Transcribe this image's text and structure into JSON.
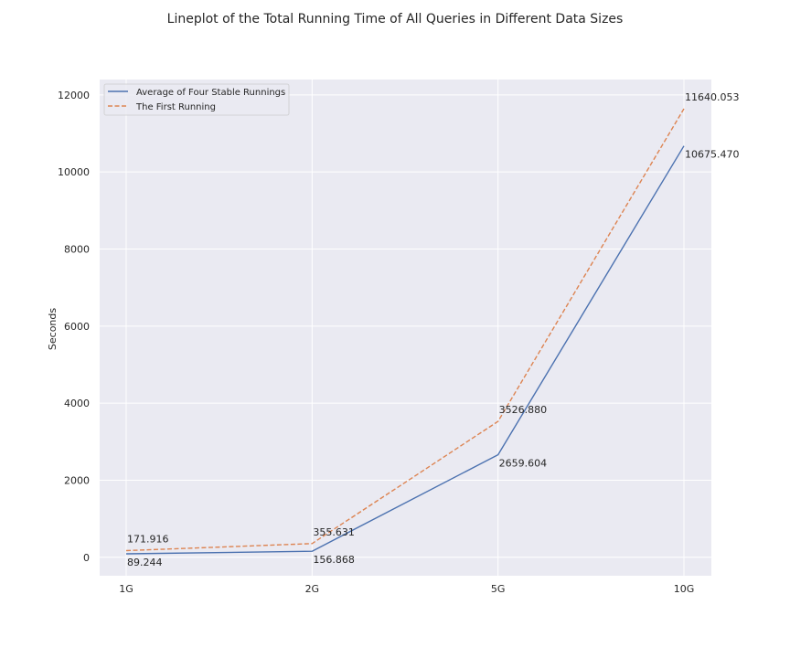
{
  "chart_data": {
    "type": "line",
    "title": "Lineplot of the Total Running Time of All Queries in Different Data Sizes",
    "xlabel": "",
    "ylabel": "Seconds",
    "categories": [
      "1G",
      "2G",
      "5G",
      "10G"
    ],
    "ylim": [
      -480,
      12400
    ],
    "yticks": [
      0,
      2000,
      4000,
      6000,
      8000,
      10000,
      12000
    ],
    "grid": true,
    "legend_position": "top-left",
    "background": "#eaeaf2",
    "series": [
      {
        "name": "Average of Four Stable Runnings",
        "values": [
          89.244,
          156.868,
          2659.604,
          10675.47
        ],
        "labels": [
          "89.244",
          "156.868",
          "2659.604",
          "10675.470"
        ],
        "color": "#4c72b0",
        "style": "solid"
      },
      {
        "name": "The First Running",
        "values": [
          171.916,
          355.631,
          3526.88,
          11640.053
        ],
        "labels": [
          "171.916",
          "355.631",
          "3526.880",
          "11640.053"
        ],
        "color": "#dd8452",
        "style": "dashed"
      }
    ]
  }
}
